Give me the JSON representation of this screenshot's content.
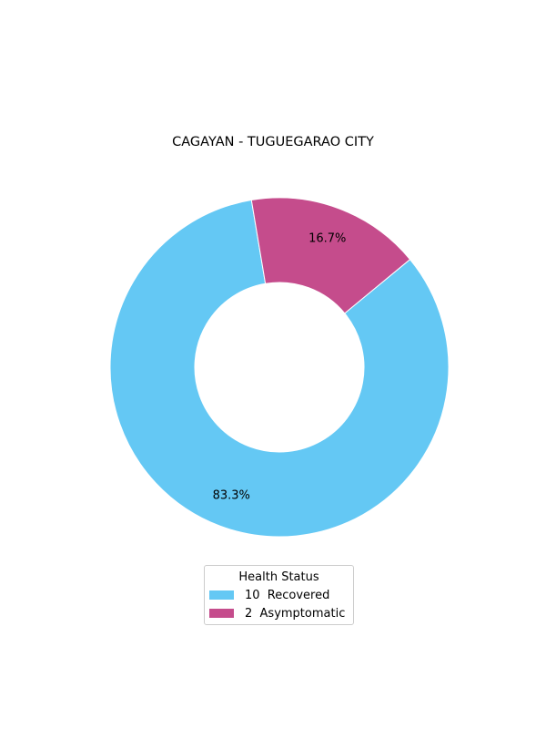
{
  "chart_data": {
    "type": "pie",
    "title": "CAGAYAN - TUGUEGARAO CITY",
    "donut": true,
    "slices": [
      {
        "label": "10  Recovered",
        "value": 10,
        "pct_label": "83.3%",
        "color": "#64c8f4"
      },
      {
        "label": "2  Asymptomatic",
        "value": 2,
        "pct_label": "16.7%",
        "color": "#c54c8c"
      }
    ],
    "legend": {
      "title": "Health Status",
      "placement": "bottom-center"
    }
  }
}
